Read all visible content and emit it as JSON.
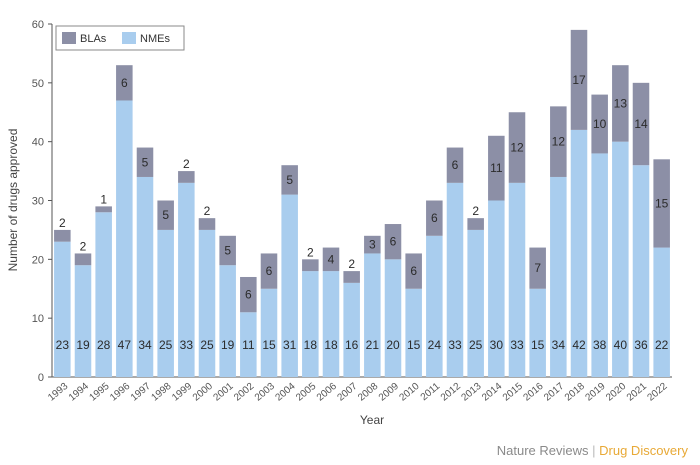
{
  "chart_data": {
    "type": "bar",
    "stacked": true,
    "xlabel": "Year",
    "ylabel": "Number of drugs approved",
    "ylim": [
      0,
      60
    ],
    "yticks": [
      0,
      10,
      20,
      30,
      40,
      50,
      60
    ],
    "grid": false,
    "legend": "top-left",
    "categories": [
      "1993",
      "1994",
      "1995",
      "1996",
      "1997",
      "1998",
      "1999",
      "2000",
      "2001",
      "2002",
      "2003",
      "2004",
      "2005",
      "2006",
      "2007",
      "2008",
      "2009",
      "2010",
      "2011",
      "2012",
      "2013",
      "2014",
      "2015",
      "2016",
      "2017",
      "2018",
      "2019",
      "2020",
      "2021",
      "2022"
    ],
    "series": [
      {
        "name": "NMEs",
        "color": "#a9cdee",
        "values": [
          23,
          19,
          28,
          47,
          34,
          25,
          33,
          25,
          19,
          11,
          15,
          31,
          18,
          18,
          16,
          21,
          20,
          15,
          24,
          33,
          25,
          30,
          33,
          15,
          34,
          42,
          38,
          40,
          36,
          22
        ]
      },
      {
        "name": "BLAs",
        "color": "#8c8fa6",
        "values": [
          2,
          2,
          1,
          6,
          5,
          5,
          2,
          2,
          5,
          6,
          6,
          5,
          2,
          4,
          2,
          3,
          6,
          6,
          6,
          6,
          2,
          11,
          12,
          7,
          12,
          17,
          10,
          13,
          14,
          15
        ]
      }
    ]
  },
  "credit": {
    "publisher": "Nature Reviews",
    "separator": "|",
    "journal": "Drug Discovery"
  }
}
